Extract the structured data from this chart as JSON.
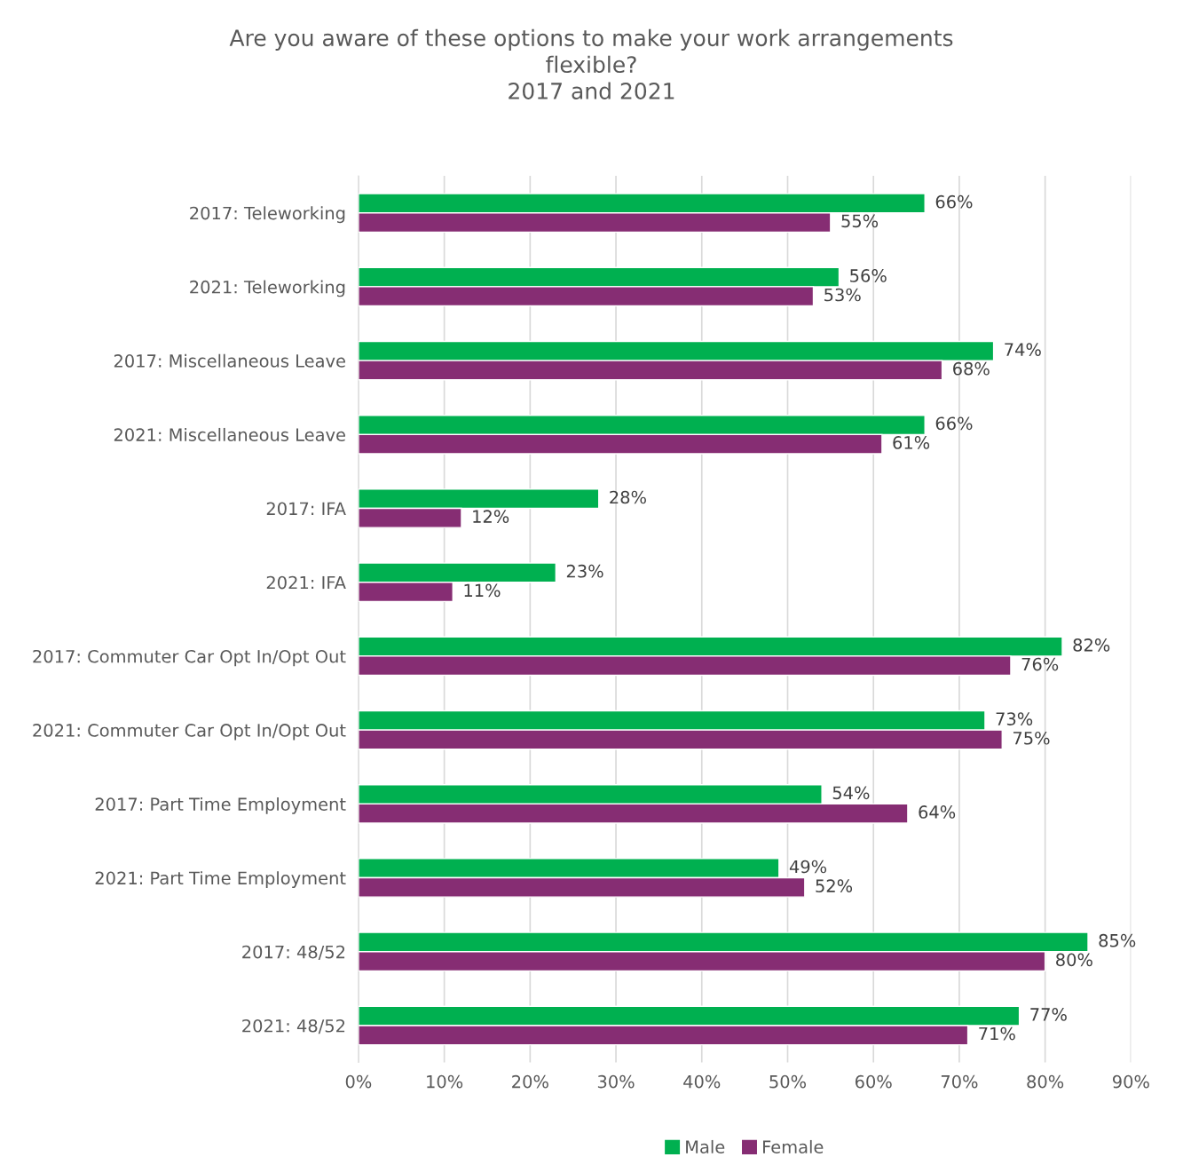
{
  "chart_data": {
    "type": "bar",
    "orientation": "horizontal",
    "title": "Are you aware of these options to make your work arrangements\nflexible?\n2017 and 2021",
    "categories": [
      "2017: Teleworking",
      "2021: Teleworking",
      "2017: Miscellaneous Leave",
      "2021: Miscellaneous Leave",
      "2017: IFA",
      "2021: IFA",
      "2017: Commuter Car Opt In/Opt Out",
      "2021: Commuter Car Opt In/Opt Out",
      "2017: Part Time Employment",
      "2021: Part Time Employment",
      "2017: 48/52",
      "2021: 48/52"
    ],
    "series": [
      {
        "name": "Male",
        "color": "#00b050",
        "values": [
          66,
          56,
          74,
          66,
          28,
          23,
          82,
          73,
          54,
          49,
          85,
          77
        ],
        "value_labels": [
          "66%",
          "56%",
          "74%",
          "66%",
          "28%",
          "23%",
          "82%",
          "73%",
          "54%",
          "49%",
          "85%",
          "77%"
        ]
      },
      {
        "name": "Female",
        "color": "#862d73",
        "values": [
          55,
          53,
          68,
          61,
          12,
          11,
          76,
          75,
          64,
          52,
          80,
          71
        ],
        "value_labels": [
          "55%",
          "53%",
          "68%",
          "61%",
          "12%",
          "11%",
          "76%",
          "75%",
          "64%",
          "52%",
          "80%",
          "71%"
        ]
      }
    ],
    "xlim": [
      0,
      90
    ],
    "xticks": [
      {
        "value": 0,
        "label": "0%"
      },
      {
        "value": 10,
        "label": "10%"
      },
      {
        "value": 20,
        "label": "20%"
      },
      {
        "value": 30,
        "label": "30%"
      },
      {
        "value": 40,
        "label": "40%"
      },
      {
        "value": 50,
        "label": "50%"
      },
      {
        "value": 60,
        "label": "60%"
      },
      {
        "value": 70,
        "label": "70%"
      },
      {
        "value": 80,
        "label": "80%"
      },
      {
        "value": 90,
        "label": "90%"
      }
    ],
    "grid": "x",
    "legend": "bottom"
  }
}
